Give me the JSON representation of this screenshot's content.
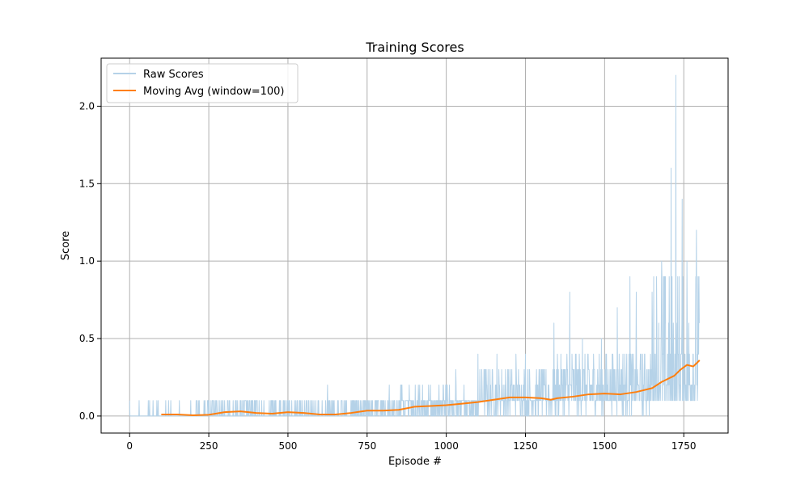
{
  "chart_data": {
    "type": "line",
    "title": "Training Scores",
    "xlabel": "Episode #",
    "ylabel": "Score",
    "xlim": [
      -90,
      1890
    ],
    "ylim": [
      -0.11,
      2.31
    ],
    "xticks": [
      0,
      250,
      500,
      750,
      1000,
      1250,
      1500,
      1750
    ],
    "yticks": [
      0.0,
      0.5,
      1.0,
      1.5,
      2.0
    ],
    "xtick_labels": [
      "0",
      "250",
      "500",
      "750",
      "1000",
      "1250",
      "1500",
      "1750"
    ],
    "ytick_labels": [
      "0.0",
      "0.5",
      "1.0",
      "1.5",
      "2.0"
    ],
    "grid": true,
    "legend_position": "top-left",
    "colors": {
      "raw": "#b5d2e8",
      "avg": "#ff7f0e",
      "grid": "#b0b0b0"
    },
    "series": [
      {
        "name": "Raw Scores",
        "color": "#b5d2e8",
        "style": "raw",
        "n_episodes": 1800
      },
      {
        "name": "Moving Avg (window=100)",
        "color": "#ff7f0e",
        "style": "avg",
        "x": [
          100,
          150,
          200,
          250,
          300,
          350,
          400,
          450,
          500,
          550,
          600,
          650,
          700,
          750,
          800,
          850,
          900,
          950,
          1000,
          1050,
          1100,
          1150,
          1200,
          1250,
          1300,
          1330,
          1350,
          1400,
          1450,
          1500,
          1550,
          1600,
          1650,
          1680,
          1700,
          1720,
          1740,
          1760,
          1780,
          1800
        ],
        "values": [
          0.01,
          0.01,
          0.005,
          0.008,
          0.025,
          0.03,
          0.02,
          0.015,
          0.025,
          0.02,
          0.01,
          0.01,
          0.02,
          0.035,
          0.035,
          0.04,
          0.06,
          0.065,
          0.07,
          0.08,
          0.09,
          0.105,
          0.12,
          0.12,
          0.115,
          0.105,
          0.115,
          0.125,
          0.14,
          0.145,
          0.14,
          0.155,
          0.18,
          0.22,
          0.24,
          0.26,
          0.3,
          0.33,
          0.32,
          0.36
        ]
      }
    ],
    "raw_peaks": [
      {
        "x": 0,
        "y": 0.1
      },
      {
        "x": 30,
        "y": 0.1
      },
      {
        "x": 90,
        "y": 0.1
      },
      {
        "x": 130,
        "y": 0.1
      },
      {
        "x": 210,
        "y": 0.1
      },
      {
        "x": 300,
        "y": 0.1
      },
      {
        "x": 400,
        "y": 0.1
      },
      {
        "x": 500,
        "y": 0.1
      },
      {
        "x": 625,
        "y": 0.2
      },
      {
        "x": 820,
        "y": 0.2
      },
      {
        "x": 860,
        "y": 0.2
      },
      {
        "x": 950,
        "y": 0.2
      },
      {
        "x": 1000,
        "y": 0.2
      },
      {
        "x": 1030,
        "y": 0.3
      },
      {
        "x": 1100,
        "y": 0.4
      },
      {
        "x": 1160,
        "y": 0.4
      },
      {
        "x": 1220,
        "y": 0.4
      },
      {
        "x": 1250,
        "y": 0.4
      },
      {
        "x": 1340,
        "y": 0.6
      },
      {
        "x": 1390,
        "y": 0.8
      },
      {
        "x": 1430,
        "y": 0.5
      },
      {
        "x": 1490,
        "y": 0.5
      },
      {
        "x": 1540,
        "y": 0.7
      },
      {
        "x": 1580,
        "y": 0.9
      },
      {
        "x": 1600,
        "y": 0.8
      },
      {
        "x": 1650,
        "y": 0.8
      },
      {
        "x": 1680,
        "y": 1.0
      },
      {
        "x": 1710,
        "y": 1.6
      },
      {
        "x": 1725,
        "y": 2.2
      },
      {
        "x": 1745,
        "y": 1.4
      },
      {
        "x": 1760,
        "y": 1.0
      },
      {
        "x": 1790,
        "y": 1.2
      }
    ]
  }
}
